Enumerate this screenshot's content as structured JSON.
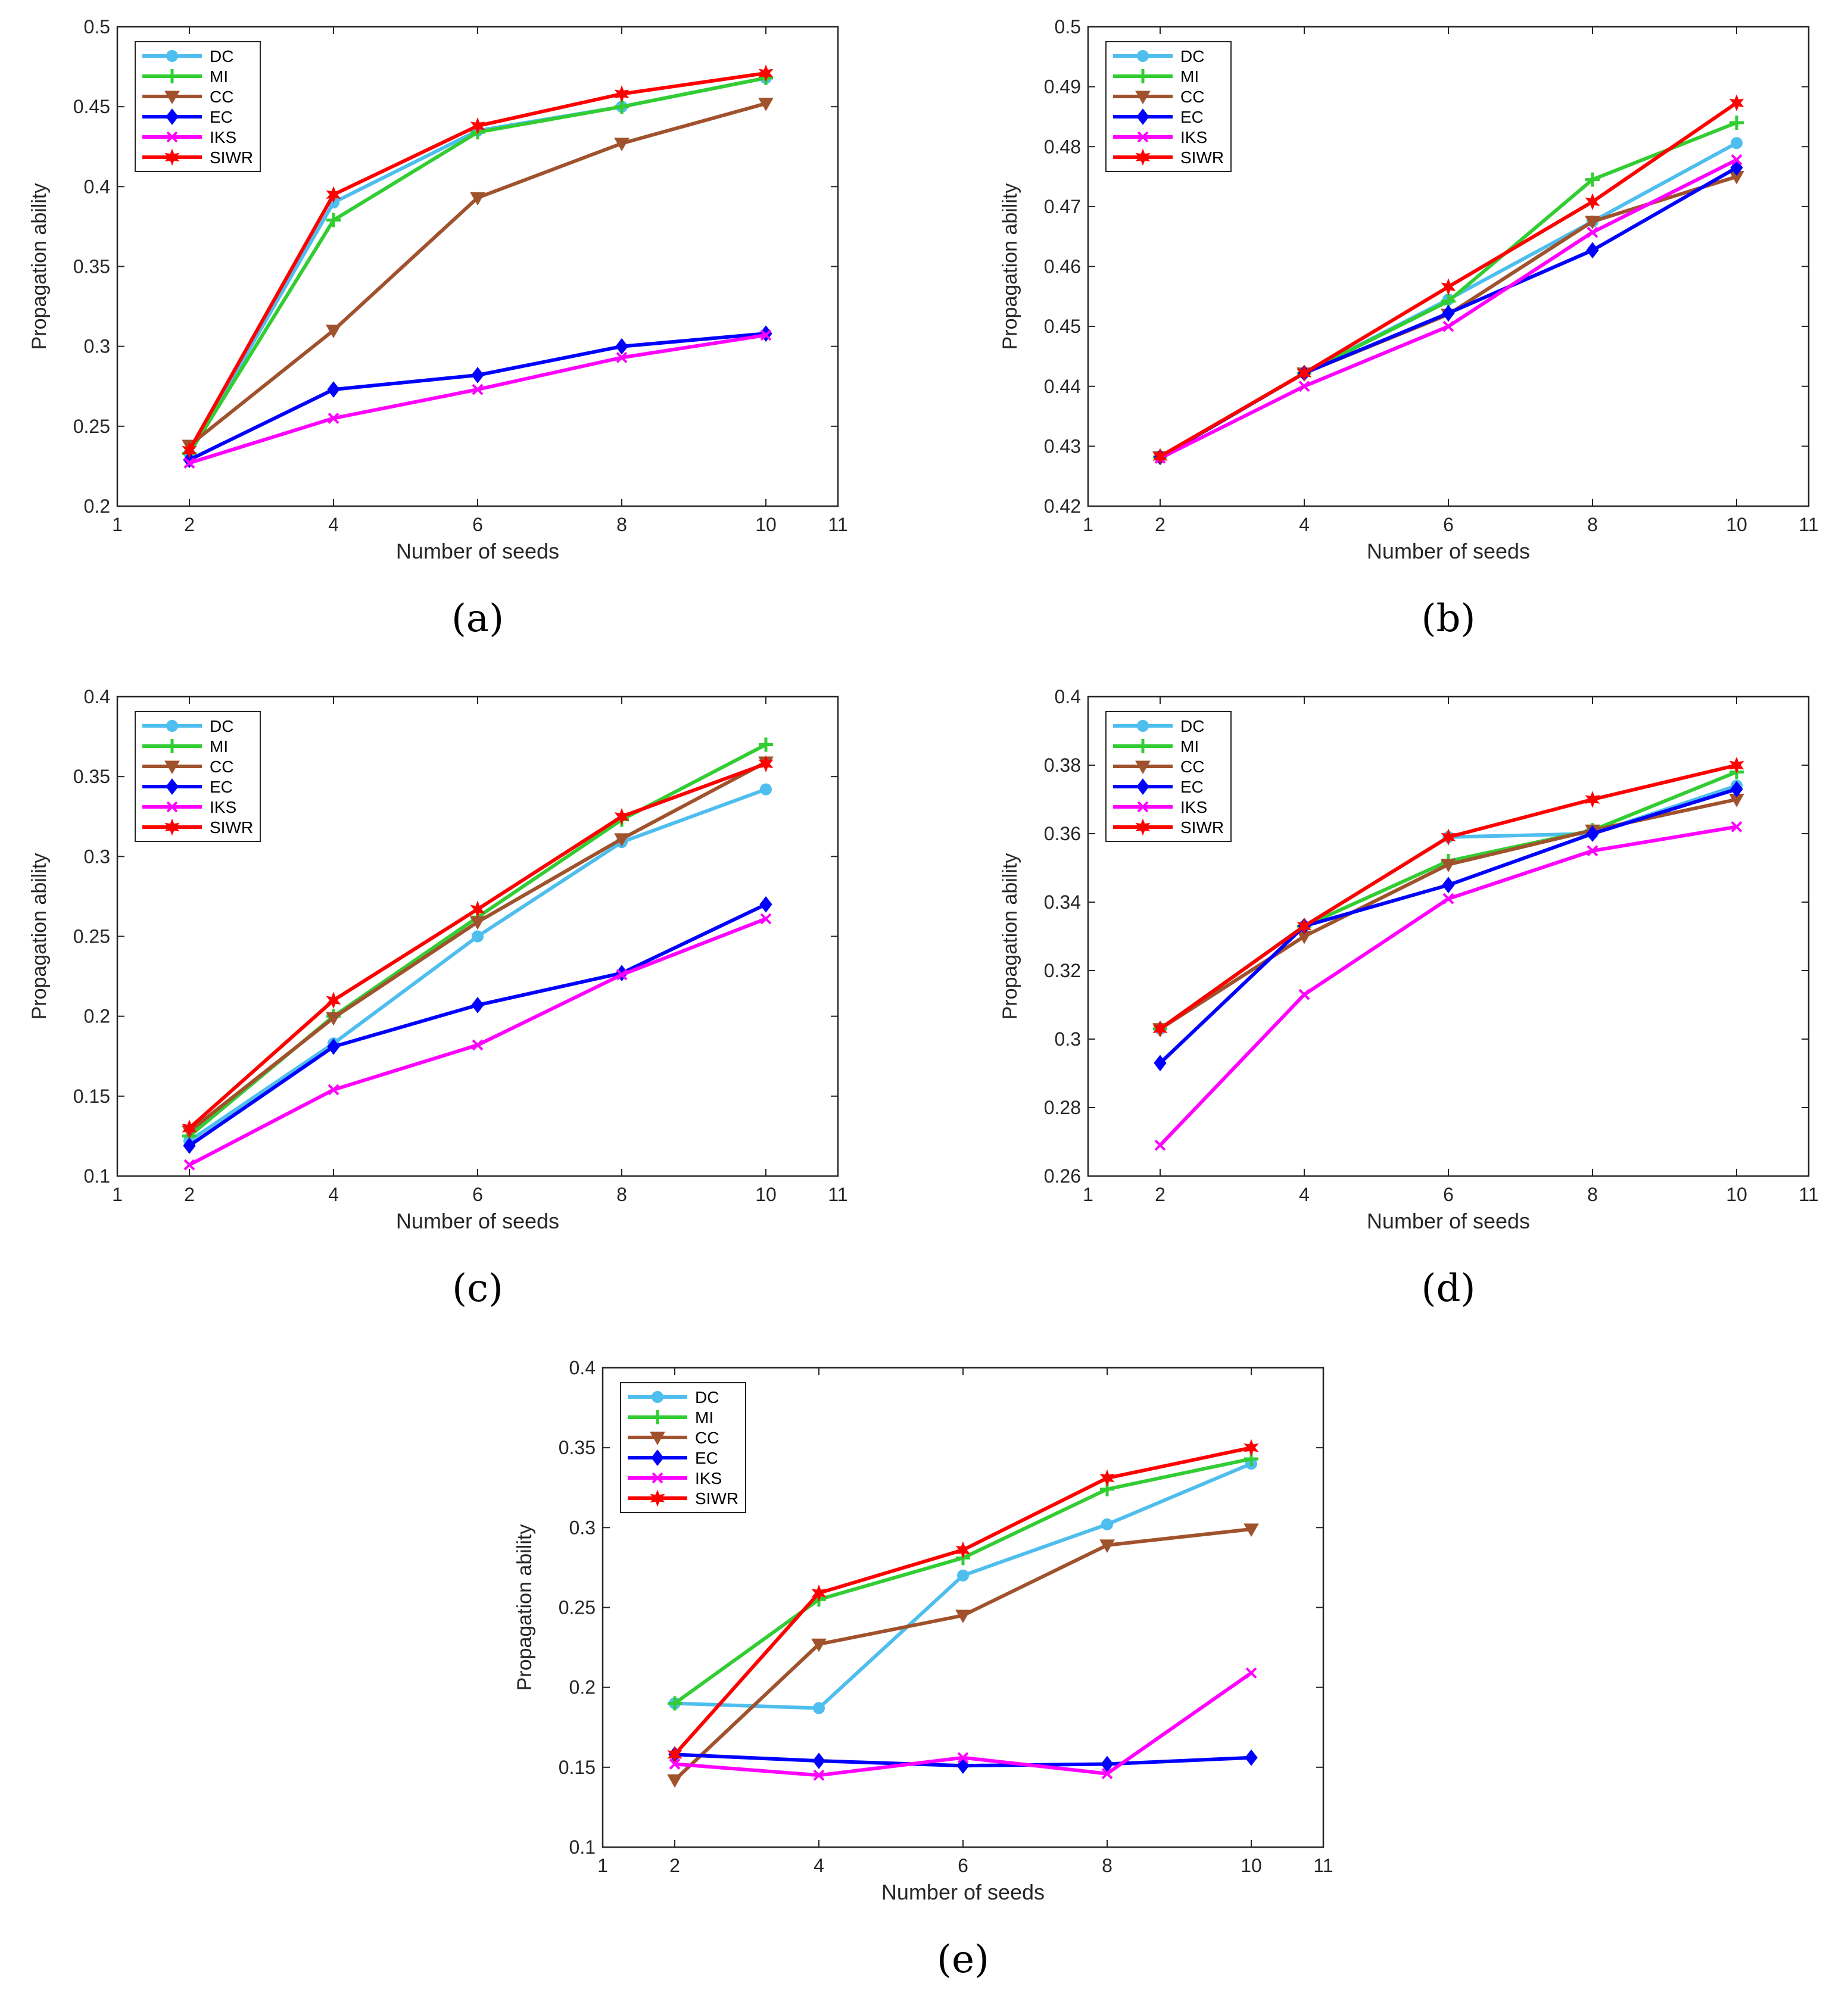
{
  "figure": {
    "series_colors": {
      "DC": "#4DBEEE",
      "MI": "#32CD32",
      "CC": "#A0522D",
      "EC": "#0000FF",
      "IKS": "#FF00FF",
      "SIWR": "#FF0000"
    }
  },
  "chart_data": [
    {
      "type": "line",
      "panel_label": "(a)",
      "xlabel": "Number of seeds",
      "ylabel": "Propagation ability",
      "xlim": [
        1,
        11
      ],
      "ylim": [
        0.2,
        0.5
      ],
      "xticks": [
        1,
        2,
        4,
        6,
        8,
        10,
        11
      ],
      "xtick_labels": [
        "1",
        "2",
        "4",
        "6",
        "8",
        "10",
        "11"
      ],
      "yticks": [
        0.2,
        0.25,
        0.3,
        0.35,
        0.4,
        0.45,
        0.5
      ],
      "ytick_labels": [
        "0.2",
        "0.25",
        "0.3",
        "0.35",
        "0.4",
        "0.45",
        "0.5"
      ],
      "legend_position": "top-left",
      "x": [
        2,
        4,
        6,
        8,
        10
      ],
      "series": [
        {
          "name": "DC",
          "values": [
            0.233,
            0.39,
            0.435,
            0.45,
            0.468
          ]
        },
        {
          "name": "MI",
          "values": [
            0.233,
            0.379,
            0.434,
            0.45,
            0.468
          ]
        },
        {
          "name": "CC",
          "values": [
            0.238,
            0.31,
            0.393,
            0.427,
            0.452
          ]
        },
        {
          "name": "EC",
          "values": [
            0.229,
            0.273,
            0.282,
            0.3,
            0.308
          ]
        },
        {
          "name": "IKS",
          "values": [
            0.227,
            0.255,
            0.273,
            0.293,
            0.307
          ]
        },
        {
          "name": "SIWR",
          "values": [
            0.235,
            0.395,
            0.438,
            0.458,
            0.471
          ]
        }
      ]
    },
    {
      "type": "line",
      "panel_label": "(b)",
      "xlabel": "Number of seeds",
      "ylabel": "Propagation ability",
      "xlim": [
        1,
        11
      ],
      "ylim": [
        0.42,
        0.5
      ],
      "xticks": [
        1,
        2,
        4,
        6,
        8,
        10,
        11
      ],
      "xtick_labels": [
        "1",
        "2",
        "4",
        "6",
        "8",
        "10",
        "11"
      ],
      "yticks": [
        0.42,
        0.43,
        0.44,
        0.45,
        0.46,
        0.47,
        0.48,
        0.49,
        0.5
      ],
      "ytick_labels": [
        "0.42",
        "0.43",
        "0.44",
        "0.45",
        "0.46",
        "0.47",
        "0.48",
        "0.49",
        "0.5"
      ],
      "legend_position": "top-left",
      "x": [
        2,
        4,
        6,
        8,
        10
      ],
      "series": [
        {
          "name": "DC",
          "values": [
            0.4282,
            0.4422,
            0.4545,
            0.4675,
            0.4806
          ]
        },
        {
          "name": "MI",
          "values": [
            0.4282,
            0.4422,
            0.4542,
            0.4745,
            0.484
          ]
        },
        {
          "name": "CC",
          "values": [
            0.4282,
            0.4422,
            0.452,
            0.4675,
            0.475
          ]
        },
        {
          "name": "EC",
          "values": [
            0.4282,
            0.4422,
            0.4522,
            0.4627,
            0.4765
          ]
        },
        {
          "name": "IKS",
          "values": [
            0.428,
            0.44,
            0.45,
            0.4657,
            0.4778
          ]
        },
        {
          "name": "SIWR",
          "values": [
            0.4283,
            0.4422,
            0.4566,
            0.4708,
            0.4873
          ]
        }
      ]
    },
    {
      "type": "line",
      "panel_label": "(c)",
      "xlabel": "Number of seeds",
      "ylabel": "Propagation ability",
      "xlim": [
        1,
        11
      ],
      "ylim": [
        0.1,
        0.4
      ],
      "xticks": [
        1,
        2,
        4,
        6,
        8,
        10,
        11
      ],
      "xtick_labels": [
        "1",
        "2",
        "4",
        "6",
        "8",
        "10",
        "11"
      ],
      "yticks": [
        0.1,
        0.15,
        0.2,
        0.25,
        0.3,
        0.35,
        0.4
      ],
      "ytick_labels": [
        "0.1",
        "0.15",
        "0.2",
        "0.25",
        "0.3",
        "0.35",
        "0.4"
      ],
      "legend_position": "top-left",
      "x": [
        2,
        4,
        6,
        8,
        10
      ],
      "series": [
        {
          "name": "DC",
          "values": [
            0.122,
            0.183,
            0.25,
            0.309,
            0.342
          ]
        },
        {
          "name": "MI",
          "values": [
            0.125,
            0.2,
            0.262,
            0.323,
            0.37
          ]
        },
        {
          "name": "CC",
          "values": [
            0.128,
            0.199,
            0.259,
            0.311,
            0.359
          ]
        },
        {
          "name": "EC",
          "values": [
            0.119,
            0.181,
            0.207,
            0.227,
            0.27
          ]
        },
        {
          "name": "IKS",
          "values": [
            0.107,
            0.154,
            0.182,
            0.226,
            0.261
          ]
        },
        {
          "name": "SIWR",
          "values": [
            0.13,
            0.21,
            0.267,
            0.325,
            0.358
          ]
        }
      ]
    },
    {
      "type": "line",
      "panel_label": "(d)",
      "xlabel": "Number of seeds",
      "ylabel": "Propagation ability",
      "xlim": [
        1,
        11
      ],
      "ylim": [
        0.26,
        0.4
      ],
      "xticks": [
        1,
        2,
        4,
        6,
        8,
        10,
        11
      ],
      "xtick_labels": [
        "1",
        "2",
        "4",
        "6",
        "8",
        "10",
        "11"
      ],
      "yticks": [
        0.26,
        0.28,
        0.3,
        0.32,
        0.34,
        0.36,
        0.38,
        0.4
      ],
      "ytick_labels": [
        "0.26",
        "0.28",
        "0.3",
        "0.32",
        "0.34",
        "0.36",
        "0.38",
        "0.4"
      ],
      "legend_position": "top-left",
      "x": [
        2,
        4,
        6,
        8,
        10
      ],
      "series": [
        {
          "name": "DC",
          "values": [
            0.303,
            0.333,
            0.359,
            0.36,
            0.374
          ]
        },
        {
          "name": "MI",
          "values": [
            0.303,
            0.333,
            0.352,
            0.361,
            0.378
          ]
        },
        {
          "name": "CC",
          "values": [
            0.303,
            0.33,
            0.351,
            0.361,
            0.37
          ]
        },
        {
          "name": "EC",
          "values": [
            0.293,
            0.333,
            0.345,
            0.36,
            0.373
          ]
        },
        {
          "name": "IKS",
          "values": [
            0.269,
            0.313,
            0.341,
            0.355,
            0.362
          ]
        },
        {
          "name": "SIWR",
          "values": [
            0.303,
            0.333,
            0.359,
            0.37,
            0.38
          ]
        }
      ]
    },
    {
      "type": "line",
      "panel_label": "(e)",
      "xlabel": "Number of seeds",
      "ylabel": "Propagation ability",
      "xlim": [
        1,
        11
      ],
      "ylim": [
        0.1,
        0.4
      ],
      "xticks": [
        1,
        2,
        4,
        6,
        8,
        10,
        11
      ],
      "xtick_labels": [
        "1",
        "2",
        "4",
        "6",
        "8",
        "10",
        "11"
      ],
      "yticks": [
        0.1,
        0.15,
        0.2,
        0.25,
        0.3,
        0.35,
        0.4
      ],
      "ytick_labels": [
        "0.1",
        "0.15",
        "0.2",
        "0.25",
        "0.3",
        "0.35",
        "0.4"
      ],
      "legend_position": "top-left",
      "x": [
        2,
        4,
        6,
        8,
        10
      ],
      "series": [
        {
          "name": "DC",
          "values": [
            0.19,
            0.187,
            0.27,
            0.302,
            0.34
          ]
        },
        {
          "name": "MI",
          "values": [
            0.19,
            0.255,
            0.281,
            0.324,
            0.343
          ]
        },
        {
          "name": "CC",
          "values": [
            0.142,
            0.227,
            0.245,
            0.289,
            0.299
          ]
        },
        {
          "name": "EC",
          "values": [
            0.158,
            0.154,
            0.151,
            0.152,
            0.156
          ]
        },
        {
          "name": "IKS",
          "values": [
            0.152,
            0.145,
            0.156,
            0.146,
            0.209
          ]
        },
        {
          "name": "SIWR",
          "values": [
            0.158,
            0.259,
            0.286,
            0.331,
            0.35
          ]
        }
      ]
    }
  ]
}
